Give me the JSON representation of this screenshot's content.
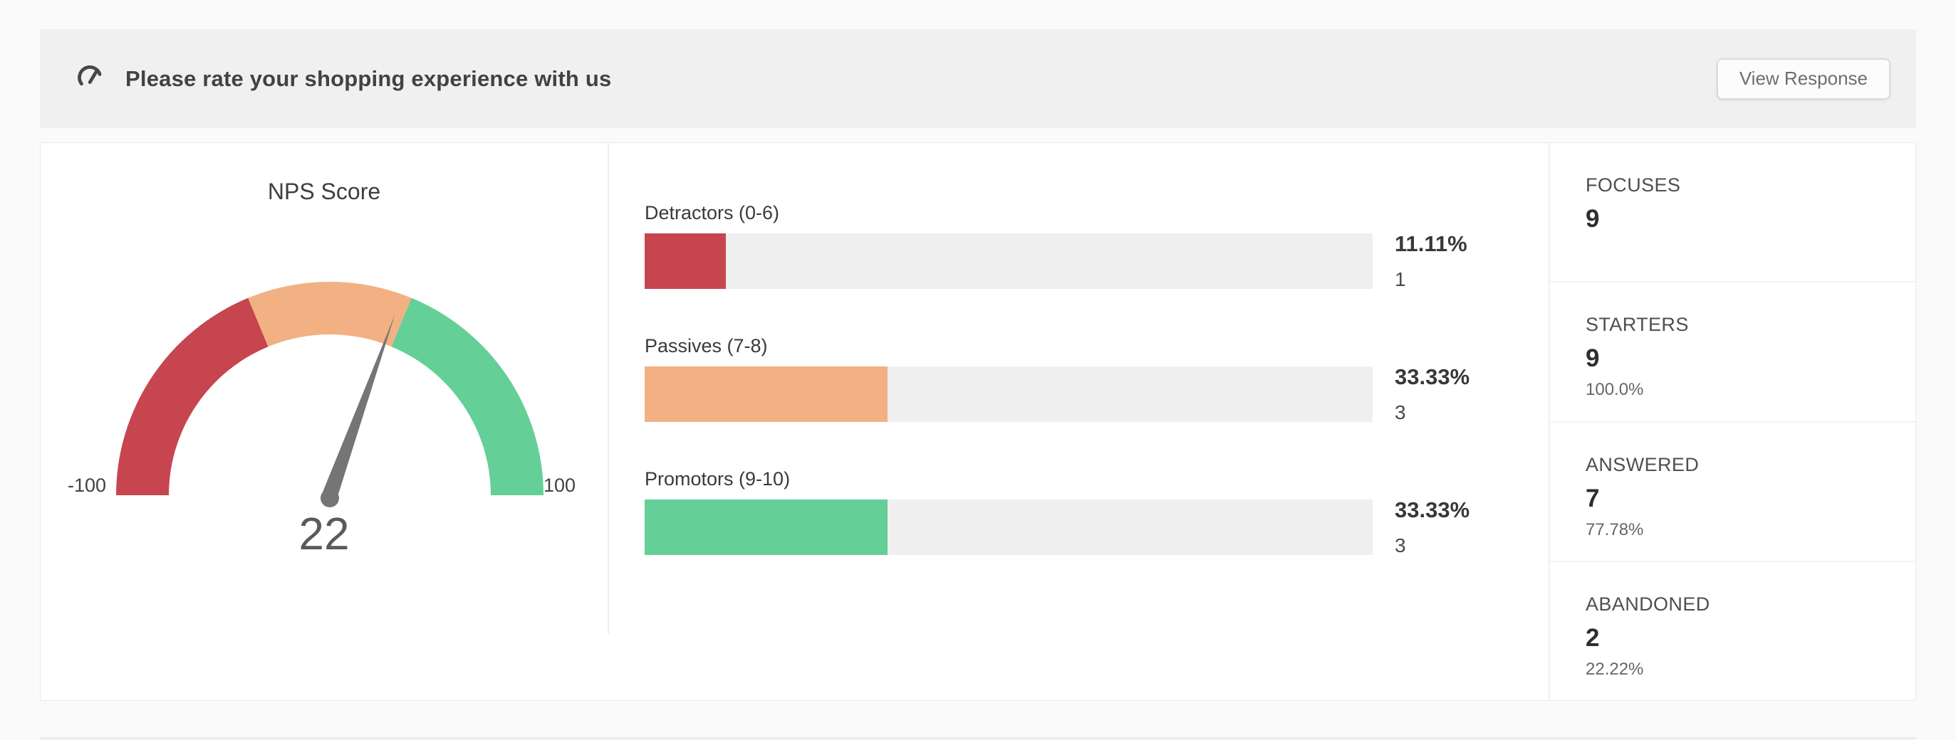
{
  "header": {
    "icon": "gauge-icon",
    "title": "Please rate your shopping experience with us",
    "button_label": "View Response"
  },
  "gauge": {
    "title": "NPS Score",
    "min_label": "-100",
    "max_label": "100",
    "value_label": "22"
  },
  "chart_data": [
    {
      "type": "gauge",
      "title": "NPS Score",
      "min": -100,
      "max": 100,
      "value": 22,
      "segments": [
        {
          "name": "detractor-zone",
          "from": -100,
          "to": -25,
          "color": "#c6454f"
        },
        {
          "name": "passive-zone",
          "from": -25,
          "to": 25,
          "color": "#f2b183"
        },
        {
          "name": "promoter-zone",
          "from": 25,
          "to": 100,
          "color": "#64cf97"
        }
      ],
      "needle_color": "#757575",
      "tick_labels": [
        "-100",
        "100"
      ]
    },
    {
      "type": "bar",
      "orientation": "horizontal",
      "categories": [
        "Detractors (0-6)",
        "Passives (7-8)",
        "Promotors (9-10)"
      ],
      "values_percent": [
        11.11,
        33.33,
        33.33
      ],
      "counts": [
        1,
        3,
        3
      ],
      "percent_labels": [
        "11.11%",
        "33.33%",
        "33.33%"
      ],
      "count_labels": [
        "1",
        "3",
        "3"
      ],
      "bar_colors": [
        "#c6454f",
        "#f2b183",
        "#64cf97"
      ],
      "track_color": "#efefef",
      "xlim": [
        0,
        100
      ],
      "grid": false,
      "legend": false
    }
  ],
  "stats": [
    {
      "label": "FOCUSES",
      "value": "9",
      "percent": ""
    },
    {
      "label": "STARTERS",
      "value": "9",
      "percent": "100.0%"
    },
    {
      "label": "ANSWERED",
      "value": "7",
      "percent": "77.78%"
    },
    {
      "label": "ABANDONED",
      "value": "2",
      "percent": "22.22%"
    }
  ],
  "colors": {
    "detractor_red": "#c6454f",
    "passive_orange": "#f2b183",
    "promoter_green": "#64cf97",
    "track_gray": "#efefef",
    "needle_gray": "#757575",
    "header_band_bg": "#f0f0f0",
    "page_bg": "#fafafa",
    "card_bg": "#ffffff"
  }
}
